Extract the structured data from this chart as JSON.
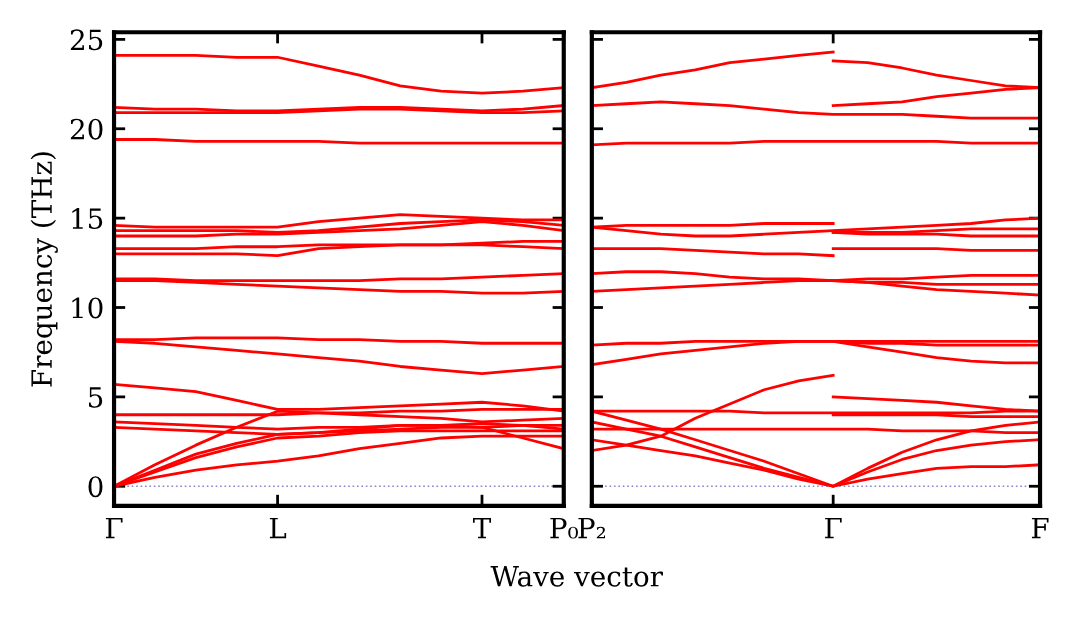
{
  "chart_data": [
    {
      "type": "line",
      "ylabel": "Frequency (THz)",
      "xlabel": "Wave vector",
      "ylim": [
        -1.1,
        25.4
      ],
      "yticks": [
        0,
        5,
        10,
        15,
        20,
        25
      ],
      "categories": [
        "Γ",
        null,
        null,
        null,
        "L",
        null,
        null,
        null,
        null,
        "T",
        null,
        "P₀"
      ],
      "grid": false,
      "legend": false,
      "marker": "none",
      "line_style": "solid",
      "ref_lines": [
        {
          "axis": "y",
          "value": 0,
          "color": "#8888cc",
          "line_style": "dotted"
        }
      ],
      "series": [
        {
          "color": "#ff0000",
          "values": [
            24.1,
            24.1,
            24.1,
            24.0,
            24.0,
            23.5,
            23.0,
            22.4,
            22.1,
            22.0,
            22.1,
            22.3
          ]
        },
        {
          "color": "#ff0000",
          "values": [
            21.2,
            21.1,
            21.1,
            21.0,
            21.0,
            21.1,
            21.2,
            21.2,
            21.1,
            21.0,
            21.1,
            21.3
          ]
        },
        {
          "color": "#ff0000",
          "values": [
            20.9,
            20.9,
            20.9,
            20.9,
            20.9,
            21.0,
            21.1,
            21.1,
            21.0,
            20.9,
            20.9,
            21.0
          ]
        },
        {
          "color": "#ff0000",
          "values": [
            19.4,
            19.4,
            19.3,
            19.3,
            19.3,
            19.3,
            19.2,
            19.2,
            19.2,
            19.2,
            19.2,
            19.2
          ]
        },
        {
          "color": "#ff0000",
          "values": [
            14.6,
            14.5,
            14.5,
            14.5,
            14.5,
            14.8,
            15.0,
            15.2,
            15.1,
            15.0,
            14.9,
            14.9
          ]
        },
        {
          "color": "#ff0000",
          "values": [
            14.3,
            14.3,
            14.3,
            14.3,
            14.2,
            14.3,
            14.5,
            14.7,
            14.8,
            14.9,
            14.8,
            14.6
          ]
        },
        {
          "color": "#ff0000",
          "values": [
            14.0,
            14.0,
            14.0,
            14.1,
            14.1,
            14.2,
            14.3,
            14.4,
            14.6,
            14.8,
            14.6,
            14.3
          ]
        },
        {
          "color": "#ff0000",
          "values": [
            13.0,
            13.0,
            13.0,
            13.0,
            12.9,
            13.3,
            13.4,
            13.5,
            13.5,
            13.5,
            13.4,
            13.3
          ]
        },
        {
          "color": "#ff0000",
          "values": [
            13.3,
            13.3,
            13.3,
            13.4,
            13.4,
            13.5,
            13.5,
            13.5,
            13.5,
            13.6,
            13.7,
            13.7
          ]
        },
        {
          "color": "#ff0000",
          "values": [
            11.6,
            11.6,
            11.5,
            11.5,
            11.5,
            11.5,
            11.5,
            11.6,
            11.6,
            11.7,
            11.8,
            11.9
          ]
        },
        {
          "color": "#ff0000",
          "values": [
            11.5,
            11.5,
            11.4,
            11.3,
            11.2,
            11.1,
            11.0,
            10.9,
            10.9,
            10.8,
            10.8,
            10.9
          ]
        },
        {
          "color": "#ff0000",
          "values": [
            8.2,
            8.2,
            8.3,
            8.3,
            8.3,
            8.2,
            8.2,
            8.1,
            8.1,
            8.0,
            8.0,
            8.0
          ]
        },
        {
          "color": "#ff0000",
          "values": [
            8.1,
            8.0,
            7.8,
            7.6,
            7.4,
            7.2,
            7.0,
            6.7,
            6.5,
            6.3,
            6.5,
            6.7
          ]
        },
        {
          "color": "#ff0000",
          "values": [
            5.7,
            5.5,
            5.3,
            4.8,
            4.3,
            4.3,
            4.4,
            4.5,
            4.6,
            4.7,
            4.5,
            4.2
          ]
        },
        {
          "color": "#ff0000",
          "values": [
            4.0,
            4.0,
            4.0,
            4.0,
            4.0,
            4.1,
            4.1,
            4.2,
            4.2,
            4.3,
            4.3,
            4.3
          ]
        },
        {
          "color": "#ff0000",
          "values": [
            3.6,
            3.5,
            3.4,
            3.3,
            3.2,
            3.3,
            3.3,
            3.4,
            3.4,
            3.5,
            3.4,
            3.2
          ]
        },
        {
          "color": "#ff0000",
          "values": [
            3.3,
            3.2,
            3.1,
            3.0,
            2.9,
            3.0,
            3.2,
            3.4,
            3.4,
            3.3,
            2.7,
            2.1
          ]
        },
        {
          "color": "#ff0000",
          "values": [
            0,
            1.2,
            2.3,
            3.3,
            4.2,
            4.1,
            4.0,
            3.9,
            3.8,
            3.6,
            3.7,
            3.8
          ]
        },
        {
          "color": "#ff0000",
          "values": [
            0,
            0.9,
            1.8,
            2.4,
            2.9,
            3.0,
            3.1,
            3.2,
            3.3,
            3.3,
            3.4,
            3.4
          ]
        },
        {
          "color": "#ff0000",
          "values": [
            0,
            0.8,
            1.6,
            2.2,
            2.7,
            2.8,
            3.0,
            3.1,
            3.1,
            3.1,
            3.1,
            3.1
          ]
        },
        {
          "color": "#ff0000",
          "values": [
            0,
            0.5,
            0.9,
            1.2,
            1.4,
            1.7,
            2.1,
            2.4,
            2.7,
            2.8,
            2.8,
            2.8
          ]
        }
      ]
    },
    {
      "type": "line",
      "ylim": [
        -1.1,
        25.4
      ],
      "yticks": [
        0,
        5,
        10,
        15,
        20,
        25
      ],
      "tick_labels": "x",
      "categories": [
        "P₂",
        null,
        null,
        null,
        null,
        null,
        null,
        "Γ",
        null,
        null,
        null,
        null,
        null,
        "F"
      ],
      "grid": false,
      "legend": false,
      "marker": "none",
      "line_style": "solid",
      "ref_lines": [
        {
          "axis": "y",
          "value": 0,
          "color": "#8888cc",
          "line_style": "dotted"
        }
      ],
      "series": [
        {
          "color": "#ff0000",
          "values": [
            22.3,
            22.6,
            23.0,
            23.3,
            23.7,
            23.9,
            24.1,
            24.3,
            null,
            null,
            null,
            null,
            null,
            null
          ]
        },
        {
          "color": "#ff0000",
          "values": [
            21.3,
            21.4,
            21.5,
            21.4,
            21.3,
            21.1,
            20.9,
            20.8,
            20.8,
            20.8,
            20.7,
            20.6,
            20.6,
            20.6
          ]
        },
        {
          "color": "#ff0000",
          "values": [
            19.1,
            19.2,
            19.2,
            19.2,
            19.2,
            19.3,
            19.3,
            19.3,
            19.3,
            19.3,
            19.3,
            19.2,
            19.2,
            19.2
          ]
        },
        {
          "color": "#ff0000",
          "values": [
            14.5,
            14.6,
            14.6,
            14.6,
            14.6,
            14.7,
            14.7,
            14.7,
            null,
            null,
            null,
            null,
            null,
            null
          ]
        },
        {
          "color": "#ff0000",
          "values": [
            14.5,
            14.3,
            14.1,
            14.0,
            14.0,
            14.1,
            14.2,
            14.3,
            14.4,
            14.5,
            14.6,
            14.7,
            14.9,
            15.0
          ]
        },
        {
          "color": "#ff0000",
          "values": [
            13.3,
            13.3,
            13.3,
            13.2,
            13.1,
            13.0,
            13.0,
            12.9,
            null,
            null,
            null,
            null,
            null,
            null
          ]
        },
        {
          "color": "#ff0000",
          "values": [
            11.9,
            12.0,
            12.0,
            11.9,
            11.7,
            11.6,
            11.6,
            11.5,
            11.4,
            11.4,
            11.3,
            11.3,
            11.3,
            11.3
          ]
        },
        {
          "color": "#ff0000",
          "values": [
            10.9,
            11.0,
            11.1,
            11.2,
            11.3,
            11.4,
            11.5,
            11.5,
            11.6,
            11.6,
            11.7,
            11.8,
            11.8,
            11.8
          ]
        },
        {
          "color": "#ff0000",
          "values": [
            7.9,
            8.0,
            8.0,
            8.1,
            8.1,
            8.1,
            8.1,
            8.1,
            8.1,
            8.1,
            8.1,
            8.1,
            8.1,
            8.1
          ]
        },
        {
          "color": "#ff0000",
          "values": [
            6.8,
            7.1,
            7.4,
            7.6,
            7.8,
            8.0,
            8.1,
            8.1,
            7.8,
            7.5,
            7.2,
            7.0,
            6.9,
            6.9
          ]
        },
        {
          "color": "#ff0000",
          "values": [
            4.2,
            4.2,
            4.2,
            4.2,
            4.2,
            4.1,
            4.1,
            4.1,
            4.1,
            4.1,
            4.1,
            4.1,
            4.2,
            4.2
          ]
        },
        {
          "color": "#ff0000",
          "values": [
            4.2,
            3.7,
            3.2,
            2.6,
            2.0,
            1.4,
            0.7,
            0,
            1.0,
            1.9,
            2.6,
            3.1,
            3.4,
            3.6
          ]
        },
        {
          "color": "#ff0000",
          "values": [
            3.6,
            3.2,
            2.8,
            2.2,
            1.6,
            1.0,
            0.5,
            0,
            0.8,
            1.5,
            2.0,
            2.3,
            2.5,
            2.6
          ]
        },
        {
          "color": "#ff0000",
          "values": [
            3.2,
            3.2,
            3.2,
            3.2,
            3.2,
            3.2,
            3.2,
            3.2,
            3.2,
            3.1,
            3.1,
            3.1,
            3.0,
            3.0
          ]
        },
        {
          "color": "#ff0000",
          "values": [
            2.6,
            2.3,
            2.0,
            1.7,
            1.3,
            0.9,
            0.4,
            0,
            0.4,
            0.7,
            1.0,
            1.1,
            1.1,
            1.2
          ]
        },
        {
          "color": "#ff0000",
          "values": [
            2.0,
            2.3,
            2.8,
            3.8,
            4.6,
            5.4,
            5.9,
            6.2,
            null,
            null,
            null,
            null,
            null,
            null
          ]
        },
        {
          "color": "#ff0000",
          "values": [
            null,
            null,
            null,
            null,
            null,
            null,
            null,
            23.8,
            23.7,
            23.4,
            23.0,
            22.7,
            22.4,
            22.3
          ]
        },
        {
          "color": "#ff0000",
          "values": [
            null,
            null,
            null,
            null,
            null,
            null,
            null,
            21.3,
            21.4,
            21.5,
            21.8,
            22.0,
            22.2,
            22.3
          ]
        },
        {
          "color": "#ff0000",
          "values": [
            null,
            null,
            null,
            null,
            null,
            null,
            null,
            14.2,
            14.2,
            14.2,
            14.3,
            14.4,
            14.4,
            14.4
          ]
        },
        {
          "color": "#ff0000",
          "values": [
            null,
            null,
            null,
            null,
            null,
            null,
            null,
            14.2,
            14.1,
            14.1,
            14.1,
            14.0,
            14.0,
            14.0
          ]
        },
        {
          "color": "#ff0000",
          "values": [
            null,
            null,
            null,
            null,
            null,
            null,
            null,
            13.3,
            13.3,
            13.3,
            13.3,
            13.2,
            13.2,
            13.2
          ]
        },
        {
          "color": "#ff0000",
          "values": [
            null,
            null,
            null,
            null,
            null,
            null,
            null,
            11.5,
            11.4,
            11.2,
            11.0,
            10.9,
            10.8,
            10.7
          ]
        },
        {
          "color": "#ff0000",
          "values": [
            null,
            null,
            null,
            null,
            null,
            null,
            null,
            8.1,
            8.0,
            8.0,
            7.9,
            7.9,
            7.9,
            7.9
          ]
        },
        {
          "color": "#ff0000",
          "values": [
            null,
            null,
            null,
            null,
            null,
            null,
            null,
            5.0,
            4.9,
            4.8,
            4.7,
            4.5,
            4.3,
            4.2
          ]
        },
        {
          "color": "#ff0000",
          "values": [
            null,
            null,
            null,
            null,
            null,
            null,
            null,
            4.0,
            4.0,
            4.0,
            4.0,
            3.9,
            3.9,
            3.9
          ]
        }
      ]
    }
  ]
}
